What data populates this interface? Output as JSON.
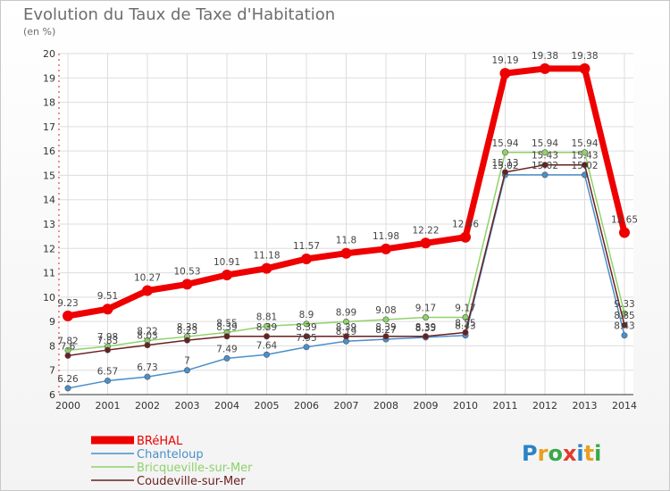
{
  "title": "Evolution du Taux de Taxe d'Habitation",
  "unit": "(en %)",
  "logo": {
    "text": "Proxiti",
    "letter_colors": [
      "#2a84c6",
      "#e8a020",
      "#3aa84a",
      "#e23a2a",
      "#2a84c6",
      "#e8a020",
      "#3aa84a"
    ]
  },
  "chart_data": {
    "type": "line",
    "title": "Evolution du Taux de Taxe d'Habitation",
    "ylabel": "(en %)",
    "xlabel": "",
    "ylim": [
      6,
      20
    ],
    "yticks": [
      6,
      7,
      8,
      9,
      10,
      11,
      12,
      13,
      14,
      15,
      16,
      17,
      18,
      19,
      20
    ],
    "grid": true,
    "legend_position": "bottom-left",
    "x": [
      "2000",
      "2001",
      "2002",
      "2003",
      "2004",
      "2005",
      "2006",
      "2007",
      "2008",
      "2009",
      "2010",
      "2011",
      "2012",
      "2013",
      "2014"
    ],
    "series": [
      {
        "name": "BRéHAL",
        "color": "#ee0000",
        "values": [
          9.23,
          9.51,
          10.27,
          10.53,
          10.91,
          11.18,
          11.57,
          11.8,
          11.98,
          12.22,
          12.46,
          19.19,
          19.38,
          19.38,
          12.65
        ],
        "labels": [
          "9.23",
          "9.51",
          "10.27",
          "10.53",
          "10.91",
          "11.18",
          "11.57",
          "11.8",
          "11.98",
          "12.22",
          "12.46",
          "19.19",
          "19.38",
          "19.38",
          "12.65"
        ]
      },
      {
        "name": "Chanteloup",
        "color": "#4a8fcc",
        "values": [
          6.26,
          6.57,
          6.73,
          7,
          7.49,
          7.64,
          7.95,
          8.19,
          8.27,
          8.35,
          8.43,
          15.02,
          15.02,
          15.02,
          8.43
        ],
        "labels": [
          "6.26",
          "6.57",
          "6.73",
          "7",
          "7.49",
          "7.64",
          "7.95",
          "8.19",
          "8.27",
          "8.35",
          "8.43",
          "15.02",
          "15.02",
          "15.02",
          "8.43"
        ]
      },
      {
        "name": "Bricqueville-sur-Mer",
        "color": "#8fd26a",
        "values": [
          7.82,
          7.98,
          8.22,
          8.38,
          8.55,
          8.81,
          8.9,
          8.99,
          9.08,
          9.17,
          9.17,
          15.94,
          15.94,
          15.94,
          9.33
        ],
        "labels": [
          "7.82",
          "7.98",
          "8.22",
          "8.38",
          "8.55",
          "8.81",
          "8.9",
          "8.99",
          "9.08",
          "9.17",
          "9.17",
          "15.94",
          "15.94",
          "15.94",
          "9.33"
        ]
      },
      {
        "name": "Coudeville-sur-Mer",
        "color": "#6a1f1f",
        "values": [
          7.6,
          7.83,
          8.03,
          8.23,
          8.39,
          8.39,
          8.39,
          8.39,
          8.39,
          8.39,
          8.55,
          15.13,
          15.43,
          15.43,
          8.85
        ],
        "labels": [
          "7.6",
          "7.83",
          "8.03",
          "8.23",
          "8.39",
          "8.39",
          "8.39",
          "8.39",
          "8.39",
          "8.39",
          "8.55",
          "15.13",
          "15.43",
          "15.43",
          "8.85"
        ]
      }
    ]
  }
}
